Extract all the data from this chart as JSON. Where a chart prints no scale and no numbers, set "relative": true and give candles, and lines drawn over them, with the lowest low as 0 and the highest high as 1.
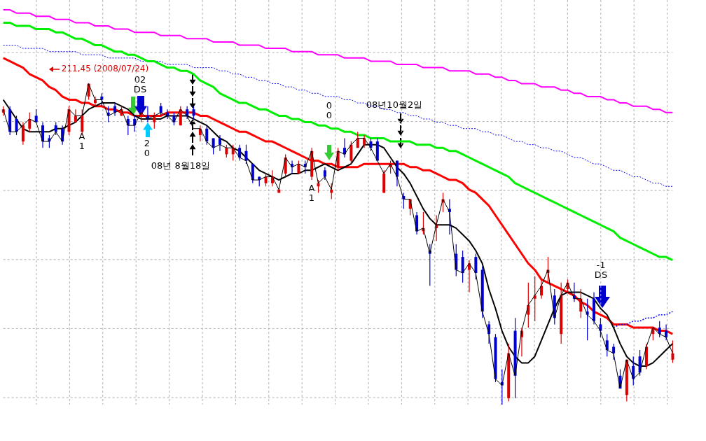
{
  "chart_data": {
    "type": "candlestick",
    "relative": true,
    "grid": true,
    "tick_labels": false,
    "marker": "none",
    "categories": [
      null,
      null,
      null,
      null,
      null,
      null,
      null,
      null,
      null,
      null,
      null,
      null,
      null,
      null,
      null,
      null,
      null,
      null,
      null,
      null,
      null,
      null,
      null,
      null,
      null,
      null,
      null,
      null,
      null,
      null,
      null,
      null,
      null,
      null,
      null,
      null,
      null,
      null,
      null,
      null,
      null,
      null,
      null,
      null,
      null,
      null,
      null,
      null,
      null,
      null,
      null,
      null,
      null,
      null,
      null,
      null,
      null,
      null,
      null,
      null,
      null,
      null,
      null,
      null,
      null,
      null,
      null,
      null,
      null,
      null,
      null,
      null,
      null,
      null,
      null,
      null,
      null,
      null,
      null,
      null,
      null,
      null,
      null,
      null,
      null,
      null,
      null,
      null,
      null,
      null,
      null,
      null,
      null,
      null,
      null,
      null,
      null,
      null,
      null,
      null,
      null,
      null,
      null
    ],
    "ohlc": [
      [
        0.91,
        0.93,
        0.9,
        0.92
      ],
      [
        0.92,
        0.93,
        0.84,
        0.85
      ],
      [
        0.89,
        0.9,
        0.84,
        0.85
      ],
      [
        0.82,
        0.88,
        0.81,
        0.87
      ],
      [
        0.86,
        0.91,
        0.85,
        0.89
      ],
      [
        0.9,
        0.92,
        0.88,
        0.88
      ],
      [
        0.87,
        0.88,
        0.8,
        0.82
      ],
      [
        0.83,
        0.84,
        0.8,
        0.82
      ],
      [
        0.87,
        0.88,
        0.84,
        0.85
      ],
      [
        0.86,
        0.87,
        0.81,
        0.82
      ],
      [
        0.85,
        0.93,
        0.84,
        0.92
      ],
      [
        0.88,
        0.92,
        0.88,
        0.9
      ],
      [
        0.85,
        0.92,
        0.84,
        0.9
      ],
      [
        0.96,
        1.0,
        0.95,
        1.0
      ],
      [
        0.94,
        0.96,
        0.93,
        0.95
      ],
      [
        0.96,
        0.97,
        0.93,
        0.95
      ],
      [
        0.91,
        0.93,
        0.88,
        0.9
      ],
      [
        0.93,
        0.94,
        0.9,
        0.91
      ],
      [
        0.9,
        0.93,
        0.9,
        0.92
      ],
      [
        0.89,
        0.9,
        0.84,
        0.87
      ],
      [
        0.89,
        0.9,
        0.85,
        0.87
      ],
      [
        0.9,
        0.92,
        0.88,
        0.91
      ],
      [
        0.9,
        0.93,
        0.88,
        0.89
      ],
      [
        0.88,
        0.91,
        0.86,
        0.9
      ],
      [
        0.93,
        0.94,
        0.9,
        0.91
      ],
      [
        0.91,
        0.92,
        0.89,
        0.9
      ],
      [
        0.9,
        0.91,
        0.87,
        0.88
      ],
      [
        0.87,
        0.93,
        0.87,
        0.92
      ],
      [
        0.92,
        0.93,
        0.89,
        0.9
      ],
      [
        0.92,
        0.93,
        0.89,
        0.9
      ],
      [
        0.84,
        0.87,
        0.82,
        0.86
      ],
      [
        0.86,
        0.87,
        0.81,
        0.82
      ],
      [
        0.83,
        0.83,
        0.78,
        0.8
      ],
      [
        0.83,
        0.84,
        0.79,
        0.81
      ],
      [
        0.78,
        0.81,
        0.77,
        0.8
      ],
      [
        0.78,
        0.81,
        0.76,
        0.8
      ],
      [
        0.8,
        0.81,
        0.76,
        0.77
      ],
      [
        0.79,
        0.81,
        0.75,
        0.76
      ],
      [
        0.75,
        0.75,
        0.69,
        0.7
      ],
      [
        0.71,
        0.71,
        0.68,
        0.7
      ],
      [
        0.69,
        0.72,
        0.68,
        0.71
      ],
      [
        0.69,
        0.73,
        0.68,
        0.71
      ],
      [
        0.66,
        0.67,
        0.66,
        0.67
      ],
      [
        0.72,
        0.78,
        0.71,
        0.77
      ],
      [
        0.75,
        0.76,
        0.72,
        0.74
      ],
      [
        0.72,
        0.76,
        0.72,
        0.75
      ],
      [
        0.75,
        0.76,
        0.72,
        0.74
      ],
      [
        0.71,
        0.8,
        0.7,
        0.79
      ],
      [
        0.68,
        0.7,
        0.66,
        0.69
      ],
      [
        0.73,
        0.74,
        0.7,
        0.71
      ],
      [
        0.66,
        0.69,
        0.64,
        0.67
      ],
      [
        0.74,
        0.8,
        0.73,
        0.79
      ],
      [
        0.8,
        0.83,
        0.77,
        0.78
      ],
      [
        0.76,
        0.82,
        0.75,
        0.81
      ],
      [
        0.8,
        0.85,
        0.8,
        0.83
      ],
      [
        0.81,
        0.84,
        0.8,
        0.83
      ],
      [
        0.82,
        0.83,
        0.79,
        0.8
      ],
      [
        0.82,
        0.83,
        0.76,
        0.76
      ],
      [
        0.66,
        0.73,
        0.66,
        0.72
      ],
      [
        0.74,
        0.76,
        0.72,
        0.75
      ],
      [
        0.76,
        0.76,
        0.68,
        0.71
      ],
      [
        0.65,
        0.66,
        0.61,
        0.64
      ],
      [
        0.61,
        0.64,
        0.59,
        0.64
      ],
      [
        0.59,
        0.6,
        0.53,
        0.54
      ],
      [
        0.54,
        0.6,
        0.53,
        0.55
      ],
      [
        0.48,
        0.5,
        0.37,
        0.47
      ],
      [
        0.55,
        0.59,
        0.51,
        0.56
      ],
      [
        0.63,
        0.66,
        0.6,
        0.64
      ],
      [
        0.61,
        0.64,
        0.53,
        0.6
      ],
      [
        0.47,
        0.5,
        0.4,
        0.42
      ],
      [
        0.46,
        0.48,
        0.38,
        0.41
      ],
      [
        0.42,
        0.45,
        0.35,
        0.44
      ],
      [
        0.46,
        0.47,
        0.39,
        0.41
      ],
      [
        0.42,
        0.43,
        0.27,
        0.29
      ],
      [
        0.25,
        0.26,
        0.19,
        0.22
      ],
      [
        0.21,
        0.22,
        0.07,
        0.08
      ],
      [
        0.07,
        0.11,
        0,
        0.06
      ],
      [
        0.02,
        0.19,
        0.01,
        0.16
      ],
      [
        0.23,
        0.27,
        0.02,
        0.09
      ],
      [
        0.21,
        0.24,
        0.15,
        0.23
      ],
      [
        0.28,
        0.38,
        0.24,
        0.31
      ],
      [
        0.33,
        0.4,
        0.26,
        0.34
      ],
      [
        0.34,
        0.39,
        0.33,
        0.37
      ],
      [
        0.41,
        0.46,
        0.38,
        0.42
      ],
      [
        0.34,
        0.36,
        0.25,
        0.27
      ],
      [
        0.22,
        0.38,
        0.19,
        0.34
      ],
      [
        0.36,
        0.39,
        0.35,
        0.38
      ],
      [
        0.34,
        0.38,
        0.32,
        0.33
      ],
      [
        0.29,
        0.36,
        0.27,
        0.33
      ],
      [
        0.29,
        0.33,
        0.2,
        0.28
      ],
      [
        0.33,
        0.35,
        0.25,
        0.26
      ],
      [
        0.25,
        0.27,
        0.21,
        0.23
      ],
      [
        0.2,
        0.22,
        0.15,
        0.17
      ],
      [
        0.18,
        0.19,
        0.14,
        0.16
      ],
      [
        0.09,
        0.11,
        0.05,
        0.05
      ],
      [
        0.03,
        0.14,
        0.01,
        0.14
      ],
      [
        0.12,
        0.15,
        0.06,
        0.08
      ],
      [
        0.15,
        0.17,
        0.09,
        0.1
      ],
      [
        0.12,
        0.19,
        0.11,
        0.18
      ],
      [
        0.22,
        0.24,
        0.2,
        0.24
      ],
      [
        0.24,
        0.26,
        0.21,
        0.22
      ],
      [
        0.23,
        0.25,
        0.2,
        0.21
      ],
      [
        0.14,
        0.2,
        0.13,
        0.16
      ]
    ],
    "colors": [
      "#dd0000",
      "#0000cc",
      "#0000cc",
      "#dd0000",
      "#dd0000",
      "#0000cc",
      "#0000cc",
      "#0000cc",
      "#0000cc",
      "#0000cc",
      "#dd0000",
      "#dd0000",
      "#dd0000",
      "#dd0000",
      "#dd0000",
      "#0000cc",
      "#0000cc",
      "#0000cc",
      "#dd0000",
      "#0000cc",
      "#0000cc",
      "#dd0000",
      "#0000cc",
      "#dd0000",
      "#0000cc",
      "#0000cc",
      "#0000cc",
      "#dd0000",
      "#0000cc",
      "#0000cc",
      "#dd0000",
      "#0000cc",
      "#0000cc",
      "#0000cc",
      "#dd0000",
      "#dd0000",
      "#0000cc",
      "#0000cc",
      "#0000cc",
      "#0000cc",
      "#dd0000",
      "#dd0000",
      "#dd0000",
      "#dd0000",
      "#0000cc",
      "#dd0000",
      "#0000cc",
      "#dd0000",
      "#dd0000",
      "#0000cc",
      "#dd0000",
      "#dd0000",
      "#0000cc",
      "#dd0000",
      "#dd0000",
      "#dd0000",
      "#0000cc",
      "#0000cc",
      "#dd0000",
      "#dd0000",
      "#0000cc",
      "#0000cc",
      "#dd0000",
      "#0000cc",
      "#dd0000",
      "#0000cc",
      "#dd0000",
      "#dd0000",
      "#0000cc",
      "#0000cc",
      "#0000cc",
      "#dd0000",
      "#0000cc",
      "#0000cc",
      "#0000cc",
      "#0000cc",
      "#0000cc",
      "#dd0000",
      "#0000cc",
      "#dd0000",
      "#dd0000",
      "#dd0000",
      "#dd0000",
      "#dd0000",
      "#0000cc",
      "#dd0000",
      "#dd0000",
      "#0000cc",
      "#dd0000",
      "#0000cc",
      "#0000cc",
      "#0000cc",
      "#0000cc",
      "#0000cc",
      "#0000cc",
      "#dd0000",
      "#0000cc",
      "#0000cc",
      "#dd0000",
      "#dd0000",
      "#0000cc",
      "#0000cc",
      "#dd0000"
    ],
    "series": [
      {
        "type": "line",
        "color": "#ff00ff",
        "line_style": "solid",
        "values": [
          1.23,
          1.23,
          1.22,
          1.22,
          1.22,
          1.21,
          1.21,
          1.21,
          1.2,
          1.2,
          1.2,
          1.19,
          1.19,
          1.19,
          1.18,
          1.18,
          1.18,
          1.17,
          1.17,
          1.17,
          1.16,
          1.16,
          1.16,
          1.16,
          1.15,
          1.15,
          1.15,
          1.15,
          1.14,
          1.14,
          1.14,
          1.14,
          1.13,
          1.13,
          1.13,
          1.13,
          1.12,
          1.12,
          1.12,
          1.12,
          1.11,
          1.11,
          1.11,
          1.11,
          1.1,
          1.1,
          1.1,
          1.1,
          1.09,
          1.09,
          1.09,
          1.09,
          1.08,
          1.08,
          1.08,
          1.08,
          1.07,
          1.07,
          1.07,
          1.07,
          1.06,
          1.06,
          1.06,
          1.06,
          1.05,
          1.05,
          1.05,
          1.05,
          1.04,
          1.04,
          1.04,
          1.04,
          1.03,
          1.03,
          1.03,
          1.02,
          1.02,
          1.01,
          1.01,
          1.0,
          1.0,
          1.0,
          0.99,
          0.99,
          0.99,
          0.98,
          0.98,
          0.97,
          0.97,
          0.96,
          0.96,
          0.96,
          0.95,
          0.95,
          0.94,
          0.94,
          0.93,
          0.93,
          0.93,
          0.92,
          0.92,
          0.91,
          0.91
        ]
      },
      {
        "type": "line",
        "color": "#0000ff",
        "line_style": "dotted",
        "values": [
          1.12,
          1.12,
          1.12,
          1.11,
          1.11,
          1.11,
          1.11,
          1.1,
          1.1,
          1.1,
          1.1,
          1.1,
          1.09,
          1.09,
          1.09,
          1.09,
          1.08,
          1.08,
          1.08,
          1.08,
          1.08,
          1.07,
          1.07,
          1.07,
          1.07,
          1.06,
          1.06,
          1.06,
          1.06,
          1.05,
          1.05,
          1.05,
          1.05,
          1.04,
          1.04,
          1.03,
          1.03,
          1.02,
          1.02,
          1.01,
          1.01,
          1.0,
          1.0,
          0.99,
          0.99,
          0.98,
          0.98,
          0.97,
          0.97,
          0.96,
          0.96,
          0.96,
          0.95,
          0.95,
          0.94,
          0.94,
          0.93,
          0.93,
          0.92,
          0.92,
          0.91,
          0.91,
          0.9,
          0.9,
          0.89,
          0.89,
          0.88,
          0.88,
          0.87,
          0.87,
          0.86,
          0.86,
          0.86,
          0.85,
          0.85,
          0.84,
          0.84,
          0.83,
          0.82,
          0.82,
          0.81,
          0.81,
          0.8,
          0.8,
          0.79,
          0.79,
          0.78,
          0.77,
          0.77,
          0.76,
          0.75,
          0.75,
          0.74,
          0.73,
          0.73,
          0.72,
          0.71,
          0.71,
          0.7,
          0.69,
          0.69,
          0.68,
          0.68
        ]
      },
      {
        "type": "line",
        "color": "#00ee00",
        "line_style": "solid",
        "values": [
          1.19,
          1.19,
          1.18,
          1.18,
          1.18,
          1.17,
          1.17,
          1.17,
          1.16,
          1.16,
          1.15,
          1.14,
          1.14,
          1.13,
          1.12,
          1.12,
          1.11,
          1.1,
          1.1,
          1.09,
          1.09,
          1.08,
          1.07,
          1.07,
          1.06,
          1.05,
          1.05,
          1.04,
          1.04,
          1.03,
          1.01,
          1.0,
          0.99,
          0.97,
          0.96,
          0.95,
          0.94,
          0.94,
          0.93,
          0.92,
          0.92,
          0.91,
          0.9,
          0.9,
          0.89,
          0.89,
          0.88,
          0.88,
          0.87,
          0.87,
          0.86,
          0.86,
          0.85,
          0.85,
          0.84,
          0.84,
          0.83,
          0.83,
          0.83,
          0.82,
          0.82,
          0.82,
          0.82,
          0.81,
          0.81,
          0.81,
          0.8,
          0.8,
          0.79,
          0.79,
          0.78,
          0.77,
          0.76,
          0.75,
          0.74,
          0.73,
          0.72,
          0.71,
          0.69,
          0.68,
          0.67,
          0.66,
          0.65,
          0.64,
          0.63,
          0.62,
          0.61,
          0.6,
          0.59,
          0.58,
          0.57,
          0.56,
          0.55,
          0.54,
          0.52,
          0.51,
          0.5,
          0.49,
          0.48,
          0.47,
          0.46,
          0.46,
          0.45
        ]
      },
      {
        "type": "line",
        "color": "#ff0000",
        "line_style": "solid",
        "values": [
          1.08,
          1.07,
          1.06,
          1.05,
          1.03,
          1.02,
          1.01,
          0.99,
          0.98,
          0.96,
          0.95,
          0.95,
          0.94,
          0.94,
          0.93,
          0.93,
          0.92,
          0.92,
          0.91,
          0.91,
          0.9,
          0.9,
          0.9,
          0.9,
          0.9,
          0.91,
          0.91,
          0.91,
          0.91,
          0.91,
          0.9,
          0.9,
          0.89,
          0.88,
          0.87,
          0.86,
          0.85,
          0.85,
          0.84,
          0.83,
          0.82,
          0.82,
          0.81,
          0.8,
          0.79,
          0.78,
          0.77,
          0.76,
          0.76,
          0.75,
          0.75,
          0.74,
          0.74,
          0.74,
          0.74,
          0.75,
          0.75,
          0.75,
          0.75,
          0.75,
          0.75,
          0.75,
          0.74,
          0.74,
          0.73,
          0.73,
          0.72,
          0.71,
          0.7,
          0.7,
          0.69,
          0.67,
          0.66,
          0.64,
          0.62,
          0.59,
          0.56,
          0.53,
          0.5,
          0.47,
          0.44,
          0.42,
          0.39,
          0.38,
          0.37,
          0.36,
          0.35,
          0.34,
          0.32,
          0.31,
          0.29,
          0.28,
          0.27,
          0.25,
          0.25,
          0.25,
          0.24,
          0.24,
          0.24,
          0.24,
          0.23,
          0.23,
          0.22
        ]
      },
      {
        "type": "line",
        "color": "#0000ff",
        "line_style": "dotted",
        "values": [
          null,
          null,
          null,
          null,
          null,
          null,
          null,
          null,
          null,
          null,
          null,
          null,
          null,
          null,
          null,
          null,
          null,
          null,
          null,
          null,
          null,
          null,
          null,
          null,
          null,
          null,
          null,
          null,
          null,
          null,
          null,
          null,
          null,
          null,
          null,
          null,
          null,
          null,
          null,
          null,
          null,
          null,
          null,
          null,
          null,
          null,
          null,
          null,
          null,
          null,
          null,
          null,
          null,
          null,
          null,
          null,
          null,
          null,
          null,
          null,
          null,
          null,
          null,
          null,
          null,
          null,
          null,
          null,
          null,
          null,
          null,
          null,
          null,
          null,
          null,
          null,
          null,
          null,
          null,
          null,
          null,
          null,
          null,
          null,
          null,
          null,
          null,
          null,
          null,
          null,
          null,
          null,
          null,
          0.24,
          0.25,
          0.25,
          0.26,
          0.26,
          0.27,
          0.27,
          0.28,
          0.28,
          0.29
        ]
      },
      {
        "type": "line",
        "color": "#000000",
        "line_style": "solid",
        "values": [
          0.95,
          0.92,
          0.89,
          0.86,
          0.85,
          0.85,
          0.85,
          0.85,
          0.86,
          0.86,
          0.87,
          0.88,
          0.9,
          0.92,
          0.93,
          0.94,
          0.94,
          0.94,
          0.93,
          0.92,
          0.9,
          0.89,
          0.89,
          0.89,
          0.89,
          0.9,
          0.9,
          0.9,
          0.9,
          0.89,
          0.88,
          0.87,
          0.85,
          0.83,
          0.82,
          0.8,
          0.79,
          0.77,
          0.75,
          0.73,
          0.72,
          0.71,
          0.7,
          0.71,
          0.72,
          0.72,
          0.73,
          0.73,
          0.74,
          0.75,
          0.74,
          0.73,
          0.74,
          0.75,
          0.78,
          0.81,
          0.81,
          0.81,
          0.8,
          0.77,
          0.74,
          0.72,
          0.69,
          0.65,
          0.61,
          0.58,
          0.56,
          0.56,
          0.56,
          0.55,
          0.53,
          0.51,
          0.48,
          0.44,
          0.36,
          0.3,
          0.23,
          0.18,
          0.15,
          0.13,
          0.13,
          0.15,
          0.2,
          0.25,
          0.3,
          0.34,
          0.35,
          0.35,
          0.35,
          0.34,
          0.33,
          0.3,
          0.28,
          0.24,
          0.19,
          0.15,
          0.13,
          0.12,
          0.12,
          0.13,
          0.15,
          0.17,
          0.19
        ]
      },
      {
        "type": "line",
        "color": "#000000",
        "line_style": "solid",
        "values": [
          0.92,
          0.85,
          0.85,
          0.87,
          0.89,
          0.88,
          0.82,
          0.82,
          0.85,
          0.82,
          0.92,
          0.9,
          0.9,
          1.0,
          0.95,
          0.95,
          0.9,
          0.91,
          0.92,
          0.87,
          0.87,
          0.91,
          0.89,
          0.9,
          0.91,
          0.9,
          0.88,
          0.92,
          0.9,
          0.86,
          0.86,
          0.82,
          0.8,
          0.81,
          0.8,
          0.8,
          0.77,
          0.76,
          0.7,
          0.7,
          0.71,
          0.71,
          0.67,
          0.77,
          0.74,
          0.75,
          0.74,
          0.79,
          0.69,
          0.71,
          0.67,
          0.79,
          0.78,
          0.81,
          0.83,
          0.83,
          0.8,
          0.76,
          0.72,
          0.75,
          0.71,
          0.64,
          0.64,
          0.54,
          0.55,
          0.47,
          0.56,
          0.64,
          0.6,
          0.42,
          0.41,
          0.44,
          0.41,
          0.29,
          0.22,
          0.08,
          0.06,
          0.16,
          0.09,
          0.23,
          0.31,
          0.34,
          0.37,
          0.42,
          0.27,
          0.34,
          0.38,
          0.33,
          0.33,
          0.28,
          0.26,
          0.23,
          0.17,
          0.16,
          0.05,
          0.14,
          0.08,
          0.1,
          0.18,
          0.24,
          0.22,
          0.21,
          0.16
        ]
      }
    ],
    "annotations": [
      "211,45 (2008/07/24)",
      "02\nDS",
      "A\n1",
      "2\n0",
      "08년 8월18일",
      "A\n1",
      "0\n0",
      "08년10월2일",
      "-1\nDS"
    ]
  }
}
